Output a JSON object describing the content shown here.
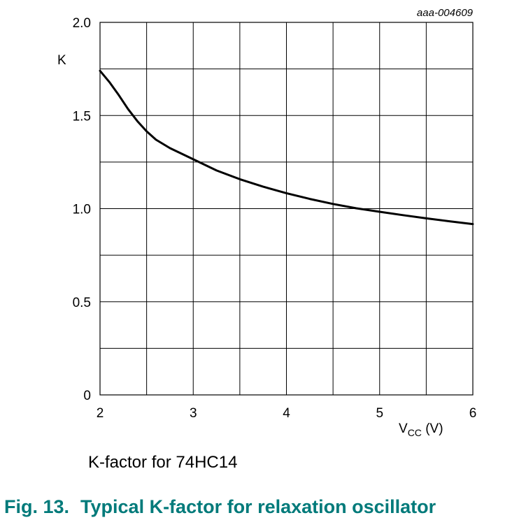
{
  "chart_data": {
    "type": "line",
    "code": "aaa-004609",
    "ylabel": "K",
    "xlabel": {
      "main": "V",
      "sub": "CC",
      "unit": " (V)"
    },
    "xlim": [
      2,
      6
    ],
    "ylim": [
      0,
      2.0
    ],
    "x_ticks": [
      2,
      3,
      4,
      5,
      6
    ],
    "x_tick_labels": [
      "2",
      "3",
      "4",
      "5",
      "6"
    ],
    "y_ticks": [
      0,
      0.5,
      1.0,
      1.5,
      2.0
    ],
    "y_tick_labels": [
      "0",
      "0.5",
      "1.0",
      "1.5",
      "2.0"
    ],
    "grid": true,
    "series": [
      {
        "x": [
          2.0,
          2.1,
          2.2,
          2.3,
          2.4,
          2.5,
          2.6,
          2.75,
          3.0,
          3.25,
          3.5,
          3.75,
          4.0,
          4.25,
          4.5,
          4.75,
          5.0,
          5.25,
          5.5,
          5.75,
          6.0
        ],
        "y": [
          1.74,
          1.68,
          1.61,
          1.535,
          1.47,
          1.415,
          1.37,
          1.325,
          1.265,
          1.205,
          1.158,
          1.118,
          1.083,
          1.052,
          1.025,
          1.002,
          0.983,
          0.965,
          0.948,
          0.932,
          0.917
        ]
      }
    ]
  },
  "caption": "K-factor for 74HC14",
  "figure": {
    "number": "Fig. 13.",
    "title": "Typical K-factor for relaxation oscillator",
    "color": "#007a7a"
  }
}
